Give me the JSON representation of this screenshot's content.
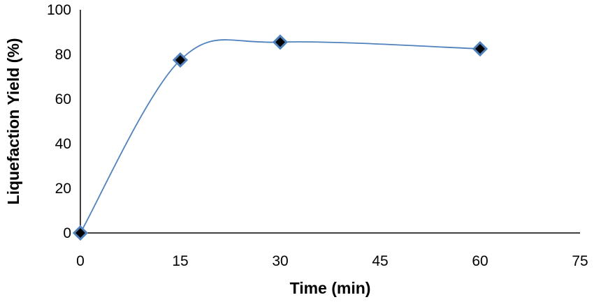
{
  "chart_data": {
    "type": "scatter",
    "title": "",
    "xlabel": "Time (min)",
    "ylabel": "Liquefaction Yield (%)",
    "xlim": [
      0,
      75
    ],
    "ylim": [
      0,
      100
    ],
    "xticks": [
      "0",
      "15",
      "30",
      "45",
      "60",
      "75"
    ],
    "yticks": [
      "0",
      "20",
      "40",
      "60",
      "80",
      "100"
    ],
    "grid": false,
    "legend": "none",
    "line_style": "smooth",
    "series": [
      {
        "x": [
          0,
          15,
          30,
          60
        ],
        "y": [
          0,
          77.5,
          85.5,
          82.5
        ],
        "marker": "diamond",
        "marker_fill": "#000000",
        "marker_edge": "#4f81bd",
        "line_color": "#4f81bd"
      }
    ]
  }
}
